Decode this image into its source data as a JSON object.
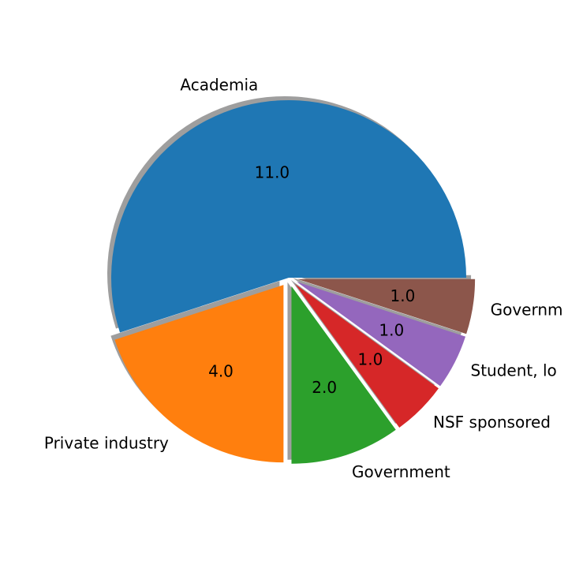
{
  "chart_data": {
    "type": "pie",
    "title": "",
    "slices": [
      {
        "label": "Academia",
        "value": 11.0,
        "value_label": "11.0",
        "color": "#1f77b4",
        "exploded": false
      },
      {
        "label": "Private industry",
        "value": 4.0,
        "value_label": "4.0",
        "color": "#ff7f0e",
        "exploded": true
      },
      {
        "label": "Government",
        "value": 2.0,
        "value_label": "2.0",
        "color": "#2ca02c",
        "exploded": true
      },
      {
        "label": "NSF sponsored",
        "value": 1.0,
        "value_label": "1.0",
        "color": "#d62728",
        "exploded": true
      },
      {
        "label": "Student, lo",
        "value": 1.0,
        "value_label": "1.0",
        "color": "#9467bd",
        "exploded": true
      },
      {
        "label": "Governm",
        "value": 1.0,
        "value_label": "1.0",
        "color": "#8c564b",
        "exploded": true
      }
    ],
    "start_angle": "0 degrees (3 o'clock), counter-clockwise",
    "shadow": true,
    "legend": "none"
  }
}
